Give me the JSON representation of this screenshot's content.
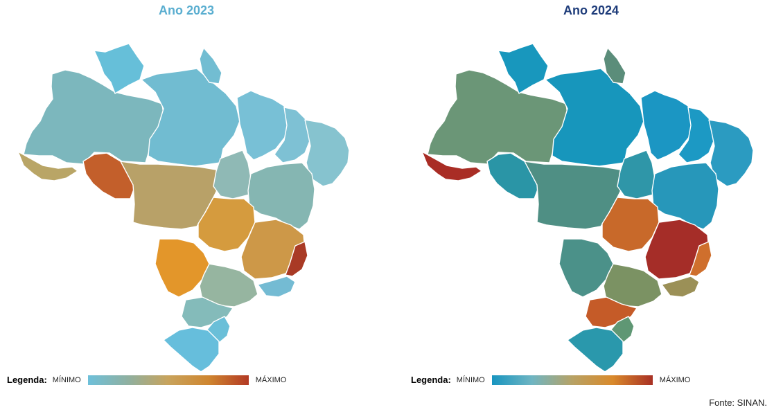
{
  "maps": [
    {
      "title": "Ano 2023",
      "title_color": "#5aaed0",
      "legend": {
        "label": "Legenda:",
        "min_label": "MÍNIMO",
        "max_label": "MÁXIMO",
        "gradient_colors": [
          "#6ec0da",
          "#8fb0a0",
          "#c8a35c",
          "#cf8630",
          "#b33a24"
        ]
      },
      "regions": [
        {
          "name": "northwest",
          "fill": "#7cb7bd"
        },
        {
          "name": "north-tip",
          "fill": "#66bfd9"
        },
        {
          "name": "north-central",
          "fill": "#71bcd1"
        },
        {
          "name": "north-bulge",
          "fill": "#72bdd2"
        },
        {
          "name": "northeast-west",
          "fill": "#78c0d6"
        },
        {
          "name": "northeast-central",
          "fill": "#7ec1d4"
        },
        {
          "name": "northeast-coast",
          "fill": "#86c3cf"
        },
        {
          "name": "far-west",
          "fill": "#b9a566"
        },
        {
          "name": "west-small",
          "fill": "#c35f2b"
        },
        {
          "name": "center-west",
          "fill": "#b8a168"
        },
        {
          "name": "north-central-south",
          "fill": "#8fb9b5"
        },
        {
          "name": "east-central",
          "fill": "#85b6b2"
        },
        {
          "name": "center",
          "fill": "#d59b3e"
        },
        {
          "name": "southeast",
          "fill": "#cd9848"
        },
        {
          "name": "east-coast",
          "fill": "#a93a25"
        },
        {
          "name": "south-central",
          "fill": "#e3962a"
        },
        {
          "name": "south-east-mid",
          "fill": "#96b5a0"
        },
        {
          "name": "coastal-strip",
          "fill": "#74bbd3"
        },
        {
          "name": "south",
          "fill": "#84bbba"
        },
        {
          "name": "south-coast",
          "fill": "#6abfd8"
        },
        {
          "name": "far-south",
          "fill": "#66bedc"
        }
      ]
    },
    {
      "title": "Ano 2024",
      "title_color": "#1e3c7a",
      "legend": {
        "label": "Legenda:",
        "min_label": "MÍNIMO",
        "max_label": "MÁXIMO",
        "gradient_colors": [
          "#1895c0",
          "#6fb5c2",
          "#b7a265",
          "#d98a2c",
          "#a83024"
        ]
      },
      "regions": [
        {
          "name": "northwest",
          "fill": "#6b9677"
        },
        {
          "name": "north-tip",
          "fill": "#1897bd"
        },
        {
          "name": "north-central",
          "fill": "#1796bc"
        },
        {
          "name": "north-bulge",
          "fill": "#5b8d7a"
        },
        {
          "name": "northeast-west",
          "fill": "#1b96c3"
        },
        {
          "name": "northeast-central",
          "fill": "#1c99c4"
        },
        {
          "name": "northeast-coast",
          "fill": "#2b9bc1"
        },
        {
          "name": "far-west",
          "fill": "#a92d25"
        },
        {
          "name": "west-small",
          "fill": "#2a95a6"
        },
        {
          "name": "center-west",
          "fill": "#4f8f84"
        },
        {
          "name": "north-central-south",
          "fill": "#2f96a8"
        },
        {
          "name": "east-central",
          "fill": "#2797ba"
        },
        {
          "name": "center",
          "fill": "#c8692a"
        },
        {
          "name": "southeast",
          "fill": "#a52d28"
        },
        {
          "name": "east-coast",
          "fill": "#cf6f2d"
        },
        {
          "name": "south-central",
          "fill": "#4b9189"
        },
        {
          "name": "south-east-mid",
          "fill": "#7b9263"
        },
        {
          "name": "coastal-strip",
          "fill": "#9b9057"
        },
        {
          "name": "south",
          "fill": "#c55b28"
        },
        {
          "name": "south-coast",
          "fill": "#5f9774"
        },
        {
          "name": "far-south",
          "fill": "#2a98ac"
        }
      ]
    }
  ],
  "source": "Fonte: SINAN."
}
